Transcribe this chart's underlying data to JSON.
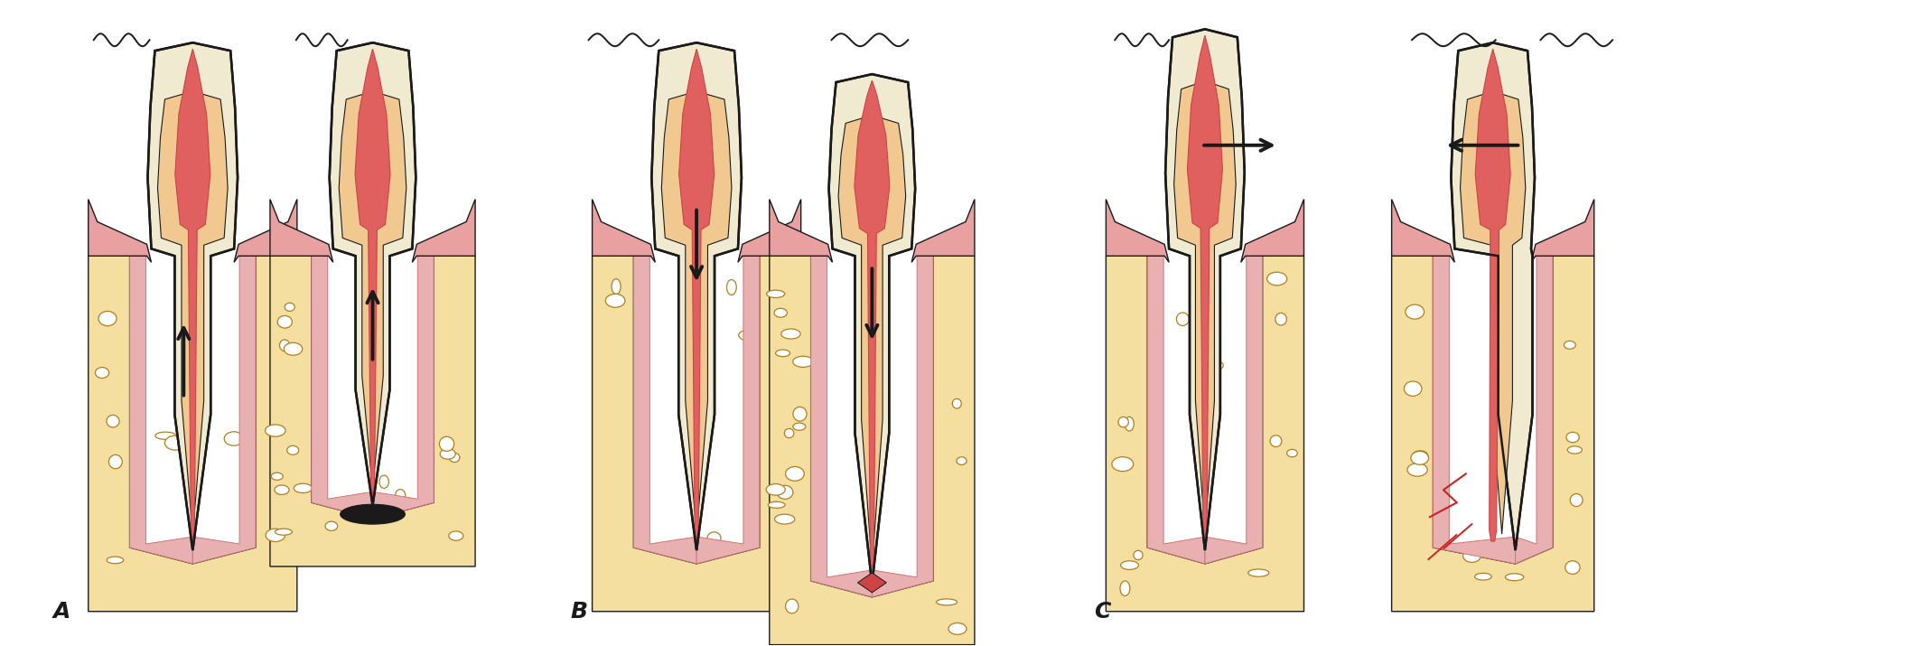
{
  "bg_color": "#ffffff",
  "label_A": "A",
  "label_B": "B",
  "label_C": "C",
  "label_fontsize": 18,
  "bone_color": "#f5dfa0",
  "dentin_color": "#f0c890",
  "pulp_color": "#e06060",
  "gum_color": "#e8a0a0",
  "enamel_color": "#f0ead0",
  "pdl_color": "#e8b0b0",
  "outline_color": "#1a1a1a",
  "arrow_color": "#1a1a1a",
  "red_color": "#cc2222",
  "wavy_color": "#1a1a1a"
}
